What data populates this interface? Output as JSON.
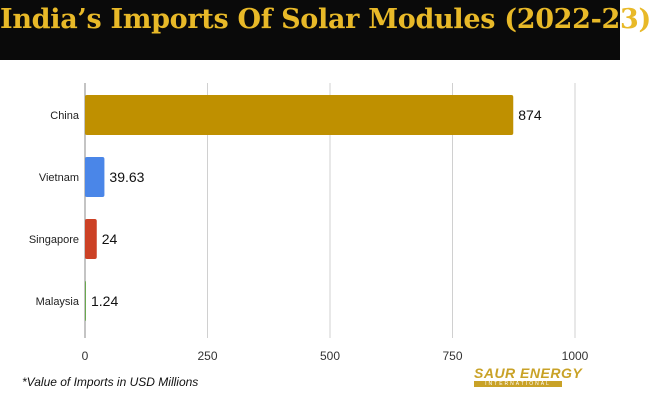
{
  "title": "India’s Imports Of Solar Modules (2022-23)",
  "footnote": "*Value of Imports in USD Millions",
  "logo": {
    "main": "SAUR ENERGY",
    "sub": "INTERNATIONAL"
  },
  "chart_data": {
    "type": "bar",
    "orientation": "horizontal",
    "categories": [
      "China",
      "Vietnam",
      "Singapore",
      "Malaysia"
    ],
    "values": [
      874,
      39.63,
      24,
      1.24
    ],
    "value_labels": [
      "874",
      "39.63",
      "24",
      "1.24"
    ],
    "colors": [
      "#bf9000",
      "#4a86e8",
      "#cc4125",
      "#6aa84f"
    ],
    "xlim": [
      0,
      1000
    ],
    "xticks": [
      "0",
      "250",
      "500",
      "750",
      "1000"
    ],
    "grid": true
  }
}
